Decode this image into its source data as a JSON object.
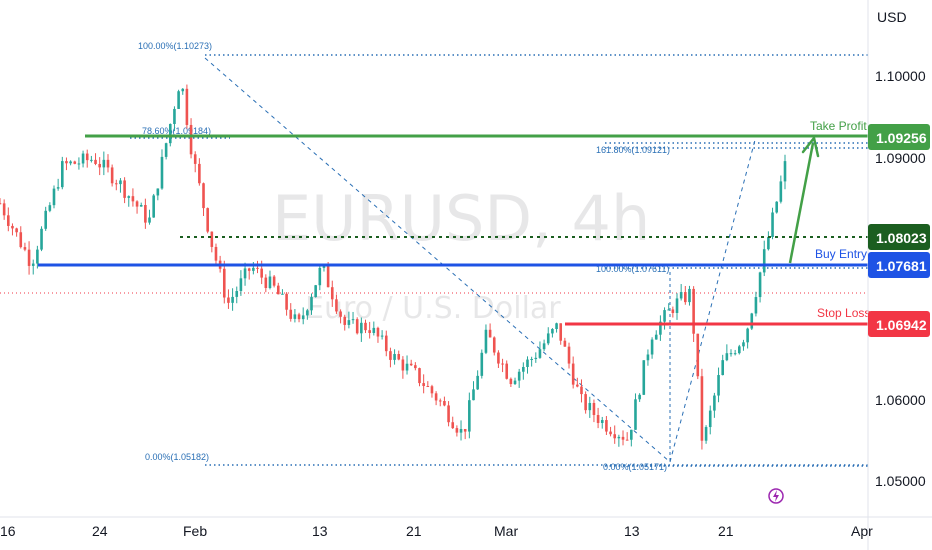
{
  "colors": {
    "bull": "#26a69a",
    "bear": "#ef5350",
    "take_profit": "#43a047",
    "entry": "#1e53e5",
    "stop": "#f23645",
    "fib": "#2a6fb5",
    "dark_green": "#1b5e20"
  },
  "watermark": {
    "symbol": "EURUSD, 4h",
    "description": "Euro / U.S. Dollar"
  },
  "levels": [
    {
      "id": "take-profit",
      "label": "Take Profit",
      "value": "1.09256",
      "price": 1.09256
    },
    {
      "id": "pivot",
      "label": "",
      "value": "1.08023",
      "price": 1.08023
    },
    {
      "id": "buy-entry",
      "label": "Buy Entry",
      "value": "1.07681",
      "price": 1.07681
    },
    {
      "id": "stop-loss",
      "label": "Stop Loss",
      "value": "1.06942",
      "price": 1.06942
    }
  ],
  "fib_labels": {
    "top": "100.00%(1.10273)",
    "upper": "78.60%(1.09184)",
    "low": "0.00%(1.05182)",
    "ext161": "161.80%(1.09121)",
    "ext100": "100.00%(1.07611)",
    "ext0": "0.00%(1.05171)"
  },
  "chart_data": {
    "type": "candlestick",
    "currency": "USD",
    "ylim": [
      1.0435,
      1.1127
    ],
    "y_ticks": [
      "1.05000",
      "1.06000",
      "1.09000",
      "1.10000"
    ],
    "x_ticks": [
      "16",
      "24",
      "Feb",
      "13",
      "21",
      "Mar",
      "13",
      "21",
      "Apr"
    ],
    "path": [
      [
        0.0,
        1.0855
      ],
      [
        0.04,
        1.0775
      ],
      [
        0.08,
        1.0905
      ],
      [
        0.12,
        1.0915
      ],
      [
        0.15,
        1.0885
      ],
      [
        0.19,
        1.083
      ],
      [
        0.23,
        1.1025
      ],
      [
        0.245,
        1.092
      ],
      [
        0.27,
        1.08
      ],
      [
        0.29,
        1.072
      ],
      [
        0.32,
        1.077
      ],
      [
        0.35,
        1.074
      ],
      [
        0.38,
        1.069
      ],
      [
        0.41,
        1.077
      ],
      [
        0.44,
        1.069
      ],
      [
        0.47,
        1.069
      ],
      [
        0.5,
        1.065
      ],
      [
        0.53,
        1.0625
      ],
      [
        0.56,
        1.059
      ],
      [
        0.59,
        1.0545
      ],
      [
        0.62,
        1.068
      ],
      [
        0.65,
        1.062
      ],
      [
        0.68,
        1.065
      ],
      [
        0.71,
        1.069
      ],
      [
        0.74,
        1.059
      ],
      [
        0.77,
        1.056
      ],
      [
        0.8,
        1.054
      ],
      [
        0.83,
        1.068
      ],
      [
        0.86,
        1.072
      ],
      [
        0.88,
        1.0735
      ],
      [
        0.895,
        1.053
      ],
      [
        0.92,
        1.064
      ],
      [
        0.95,
        1.068
      ],
      [
        0.97,
        1.077
      ],
      [
        1.0,
        1.0905
      ],
      [
        1.03,
        1.088
      ],
      [
        1.05,
        1.073
      ]
    ],
    "projection": {
      "from": 1.07681,
      "to": 1.0925
    }
  }
}
